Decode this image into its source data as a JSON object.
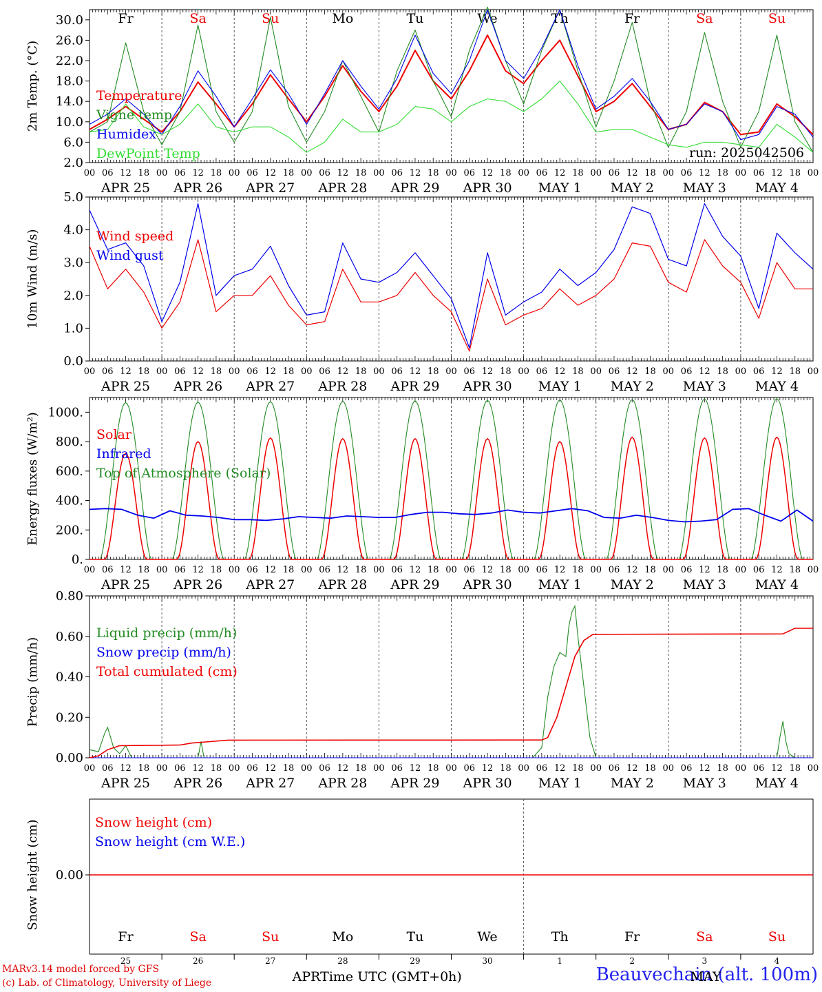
{
  "run_label": "run: 2025042506",
  "footer": {
    "model": "MARv3.14 model forced by GFS",
    "lab": "(c) Lab. of Climatology, University of Liege",
    "station": "Beauvechain (alt. 100m)",
    "time_axis_label": "Time UTC (GMT+0h)",
    "month_left": "APR",
    "month_right": "MAY"
  },
  "day_names": [
    {
      "name": "Fr",
      "weekend": false
    },
    {
      "name": "Sa",
      "weekend": true
    },
    {
      "name": "Su",
      "weekend": true
    },
    {
      "name": "Mo",
      "weekend": false
    },
    {
      "name": "Tu",
      "weekend": false
    },
    {
      "name": "We",
      "weekend": false
    },
    {
      "name": "Th",
      "weekend": false
    },
    {
      "name": "Fr",
      "weekend": false
    },
    {
      "name": "Sa",
      "weekend": true
    },
    {
      "name": "Su",
      "weekend": true
    }
  ],
  "date_labels": [
    "APR 25",
    "APR 26",
    "APR 27",
    "APR 28",
    "APR 29",
    "APR 30",
    "MAY  1",
    "MAY  2",
    "MAY  3",
    "MAY  4"
  ],
  "day_numbers": [
    "25",
    "26",
    "27",
    "28",
    "29",
    "30",
    "1",
    "2",
    "3",
    "4"
  ],
  "hour_labels": [
    "00",
    "06",
    "12",
    "18"
  ],
  "colors": {
    "red": "#ee0000",
    "green": "#228B22",
    "blue": "#0000ee",
    "lightgreen": "#33dd33"
  },
  "chart_data": [
    {
      "id": "temperature",
      "type": "line",
      "ylabel": "2m Temp. (°C)",
      "ylim": [
        2,
        32
      ],
      "yticks": [
        2,
        6,
        10,
        14,
        18,
        22,
        26,
        30
      ],
      "ytick_labels": [
        "2.0",
        "6.0",
        "10.0",
        "14.0",
        "18.0",
        "22.0",
        "26.0",
        "30.0"
      ],
      "x_hours": [
        0,
        6,
        12,
        18,
        24,
        30,
        36,
        42,
        48,
        54,
        60,
        66,
        72,
        78,
        84,
        90,
        96,
        102,
        108,
        114,
        120,
        126,
        132,
        138,
        144,
        150,
        156,
        162,
        168,
        174,
        180,
        186,
        192,
        198,
        204,
        210,
        216,
        222,
        228,
        234,
        240
      ],
      "legend": [
        "Temperature",
        "Vigne temp",
        "Humidex",
        "DewPoint Temp"
      ],
      "series": [
        {
          "name": "Temperature",
          "color": "#ee0000",
          "values": [
            8.5,
            10.5,
            13.0,
            10.5,
            8.0,
            12.0,
            17.8,
            13.5,
            9.0,
            13.5,
            19.2,
            14.5,
            10.0,
            15.0,
            21.0,
            16.0,
            12.0,
            17.0,
            24.0,
            18.0,
            14.5,
            20.0,
            27.0,
            20.0,
            17.5,
            22.0,
            26.0,
            19.0,
            12.0,
            14.0,
            17.5,
            13.0,
            8.5,
            9.5,
            13.8,
            12.0,
            7.5,
            8.0,
            13.5,
            11.0,
            7.5
          ]
        },
        {
          "name": "Vigne temp",
          "color": "#228B22",
          "values": [
            8.0,
            10.0,
            25.5,
            12.0,
            5.5,
            12.0,
            29.0,
            12.0,
            6.0,
            12.0,
            30.5,
            13.0,
            6.0,
            12.0,
            22.0,
            15.0,
            8.0,
            20.0,
            28.0,
            18.0,
            11.0,
            24.0,
            32.5,
            22.0,
            13.5,
            24.0,
            32.0,
            20.0,
            9.0,
            18.0,
            29.5,
            14.0,
            5.0,
            12.0,
            27.5,
            14.0,
            5.0,
            12.0,
            27.0,
            10.0,
            4.0
          ]
        },
        {
          "name": "Humidex",
          "color": "#0000ee",
          "values": [
            9.5,
            11.5,
            14.5,
            11.5,
            7.5,
            13.0,
            20.0,
            15.0,
            9.0,
            14.5,
            20.2,
            15.5,
            9.5,
            15.5,
            22.0,
            17.0,
            12.5,
            18.5,
            27.0,
            19.5,
            15.5,
            22.0,
            32.0,
            22.0,
            18.5,
            24.5,
            32.0,
            21.0,
            12.5,
            15.0,
            18.5,
            14.0,
            8.5,
            9.5,
            13.5,
            12.0,
            6.5,
            7.5,
            13.0,
            11.5,
            7.0
          ]
        },
        {
          "name": "DewPoint Temp",
          "color": "#33dd33",
          "values": [
            8.0,
            8.5,
            13.5,
            9.0,
            7.5,
            9.5,
            13.5,
            9.0,
            8.0,
            9.0,
            9.0,
            7.0,
            4.0,
            6.0,
            10.5,
            8.0,
            8.0,
            9.5,
            13.0,
            12.5,
            10.0,
            13.0,
            14.5,
            14.0,
            12.0,
            14.5,
            18.0,
            13.5,
            8.0,
            8.5,
            8.5,
            7.0,
            5.5,
            5.0,
            6.0,
            6.0,
            5.5,
            5.0,
            9.5,
            7.0,
            4.0
          ]
        }
      ]
    },
    {
      "id": "wind",
      "type": "line",
      "ylabel": "10m Wind (m/s)",
      "ylim": [
        0,
        5
      ],
      "yticks": [
        0,
        1,
        2,
        3,
        4,
        5
      ],
      "ytick_labels": [
        "0.0",
        "1.0",
        "2.0",
        "3.0",
        "4.0",
        "5.0"
      ],
      "x_hours": [
        0,
        6,
        12,
        18,
        24,
        30,
        36,
        42,
        48,
        54,
        60,
        66,
        72,
        78,
        84,
        90,
        96,
        102,
        108,
        114,
        120,
        126,
        132,
        138,
        144,
        150,
        156,
        162,
        168,
        174,
        180,
        186,
        192,
        198,
        204,
        210,
        216,
        222,
        228,
        234,
        240
      ],
      "legend": [
        "Wind speed",
        "Wind gust"
      ],
      "series": [
        {
          "name": "Wind speed",
          "color": "#ee0000",
          "values": [
            3.5,
            2.2,
            2.8,
            2.1,
            1.0,
            1.8,
            3.7,
            1.5,
            2.0,
            2.0,
            2.6,
            1.7,
            1.1,
            1.2,
            2.8,
            1.8,
            1.8,
            2.0,
            2.7,
            2.0,
            1.5,
            0.3,
            2.5,
            1.1,
            1.4,
            1.6,
            2.2,
            1.7,
            2.0,
            2.5,
            3.6,
            3.5,
            2.4,
            2.1,
            3.7,
            2.9,
            2.4,
            1.3,
            3.0,
            2.2,
            2.2
          ]
        },
        {
          "name": "Wind gust",
          "color": "#0000ee",
          "values": [
            4.6,
            3.4,
            3.6,
            2.9,
            1.2,
            2.4,
            4.8,
            2.0,
            2.6,
            2.8,
            3.5,
            2.3,
            1.4,
            1.5,
            3.6,
            2.5,
            2.4,
            2.7,
            3.3,
            2.6,
            1.9,
            0.4,
            3.3,
            1.4,
            1.8,
            2.1,
            2.8,
            2.3,
            2.7,
            3.4,
            4.7,
            4.5,
            3.1,
            2.9,
            4.8,
            3.8,
            3.2,
            1.6,
            3.9,
            3.3,
            2.8
          ]
        }
      ]
    },
    {
      "id": "energy",
      "type": "line",
      "ylabel": "Energy fluxes (W/m²)",
      "ylim": [
        0,
        1100
      ],
      "yticks": [
        0,
        200,
        400,
        600,
        800,
        1000
      ],
      "ytick_labels": [
        "0.",
        "200.",
        "400.",
        "600.",
        "800.",
        "1000."
      ],
      "legend": [
        "Solar",
        "Infrared",
        "Top of Atmosphere (Solar)"
      ],
      "solar_peaks": [
        720,
        800,
        825,
        820,
        820,
        820,
        800,
        830,
        825,
        830
      ],
      "toa_peak": [
        1065,
        1068,
        1071,
        1074,
        1077,
        1080,
        1083,
        1086,
        1089,
        1092
      ],
      "infrared": [
        340,
        345,
        340,
        300,
        280,
        330,
        300,
        295,
        285,
        270,
        270,
        265,
        275,
        290,
        285,
        280,
        295,
        290,
        285,
        285,
        305,
        320,
        320,
        310,
        305,
        315,
        335,
        320,
        315,
        330,
        345,
        330,
        285,
        280,
        300,
        285,
        265,
        255,
        260,
        270,
        340,
        345,
        300,
        260,
        335,
        260
      ]
    },
    {
      "id": "precip",
      "type": "line",
      "ylabel": "Precip (mm/h)",
      "ylim": [
        0,
        0.8
      ],
      "yticks": [
        0,
        0.2,
        0.4,
        0.6,
        0.8
      ],
      "ytick_labels": [
        "0.00",
        "0.20",
        "0.40",
        "0.60",
        "0.80"
      ],
      "legend": [
        "Liquid precip (mm/h)",
        "Snow precip (mm/h)",
        "Total cumulated (cm)"
      ],
      "liquid_points": [
        [
          0,
          0.04
        ],
        [
          3,
          0.03
        ],
        [
          5,
          0.12
        ],
        [
          6,
          0.15
        ],
        [
          8,
          0.05
        ],
        [
          10,
          0.02
        ],
        [
          12,
          0.06
        ],
        [
          14,
          0.0
        ],
        [
          36,
          0.0
        ],
        [
          37,
          0.08
        ],
        [
          38,
          0.0
        ],
        [
          147,
          0.0
        ],
        [
          150,
          0.05
        ],
        [
          152,
          0.3
        ],
        [
          154,
          0.45
        ],
        [
          156,
          0.52
        ],
        [
          158,
          0.5
        ],
        [
          159,
          0.65
        ],
        [
          160,
          0.72
        ],
        [
          161,
          0.75
        ],
        [
          162,
          0.6
        ],
        [
          164,
          0.35
        ],
        [
          166,
          0.1
        ],
        [
          168,
          0.0
        ],
        [
          228,
          0.0
        ],
        [
          229,
          0.1
        ],
        [
          230,
          0.18
        ],
        [
          231,
          0.08
        ],
        [
          232,
          0.02
        ],
        [
          234,
          0.0
        ]
      ],
      "cumulated_points": [
        [
          0,
          0.0
        ],
        [
          3,
          0.01
        ],
        [
          6,
          0.04
        ],
        [
          10,
          0.06
        ],
        [
          30,
          0.063
        ],
        [
          34,
          0.073
        ],
        [
          40,
          0.08
        ],
        [
          46,
          0.087
        ],
        [
          150,
          0.088
        ],
        [
          152,
          0.1
        ],
        [
          155,
          0.2
        ],
        [
          158,
          0.35
        ],
        [
          161,
          0.5
        ],
        [
          164,
          0.58
        ],
        [
          167,
          0.61
        ],
        [
          230,
          0.612
        ],
        [
          234,
          0.64
        ],
        [
          240,
          0.64
        ]
      ]
    },
    {
      "id": "snow",
      "type": "line",
      "ylabel": "Snow height (cm)",
      "yticks": [
        0
      ],
      "ytick_labels": [
        "0.00"
      ],
      "legend": [
        "Snow height (cm)",
        "Snow height (cm W.E.)"
      ],
      "snow_height_cm": 0.0
    }
  ]
}
